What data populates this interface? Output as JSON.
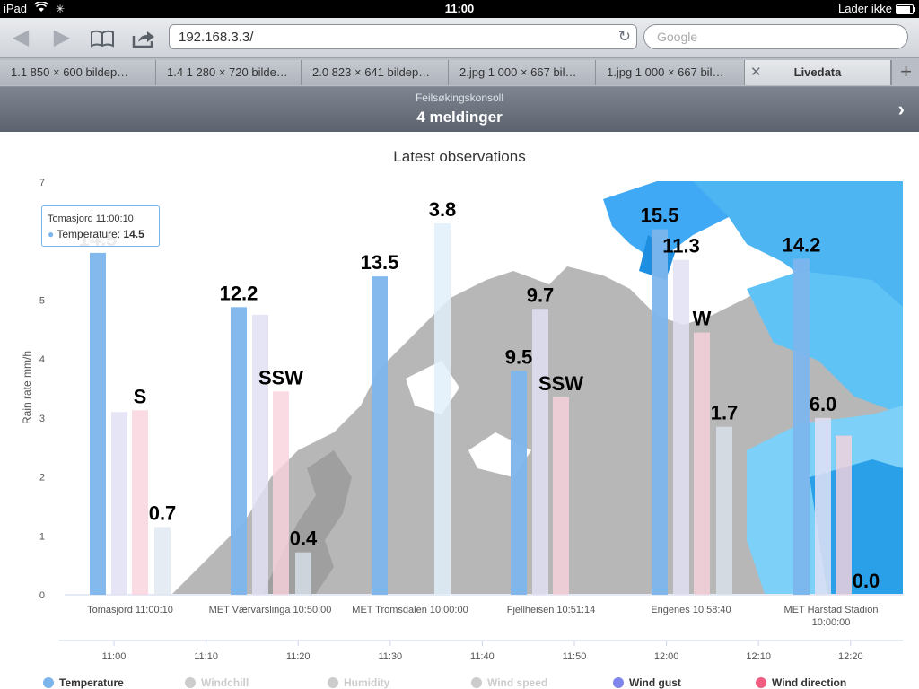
{
  "status": {
    "device": "iPad",
    "time": "11:00",
    "charging": "Lader ikke"
  },
  "browser": {
    "url": "192.168.3.3/",
    "search_placeholder": "Google",
    "tabs": [
      "1.1 850 × 600 bildep…",
      "1.4 1 280 × 720 bilde…",
      "2.0 823 × 641 bildep…",
      "2.jpg 1 000 × 667 bil…",
      "1.jpg 1 000 × 667 bil…",
      "Livedata"
    ],
    "active_tab": 5
  },
  "debug_console": {
    "title": "Feilsøkingskonsoll",
    "messages": "4 meldinger"
  },
  "tooltip": {
    "header": "Tomasjord 11:00:10",
    "series": "Temperature",
    "value": "14.5"
  },
  "colors": {
    "temperature": "#7cb5ec",
    "windchill": "#d0d0d0",
    "humidity": "#d0d0d0",
    "wind_speed": "#d0d0d0",
    "wind_gust": "#8085e9",
    "wind_direction": "#f15c80"
  },
  "chart_data": {
    "type": "bar",
    "title": "Latest observations",
    "ylabel": "Rain rate mm/h",
    "ylim": [
      0,
      7
    ],
    "yticks": [
      0,
      1,
      2,
      3,
      4,
      5,
      7
    ],
    "stations": [
      "Tomasjord 11:00:10",
      "MET Værvarslinga 10:50:00",
      "MET Tromsdalen 10:00:00",
      "Fjellheisen 10:51:14",
      "Engenes 10:58:40",
      "MET Harstad Stadion 10:00:00"
    ],
    "time_axis": [
      "11:00",
      "11:10",
      "11:20",
      "11:30",
      "11:40",
      "11:50",
      "12:00",
      "12:10",
      "12:20"
    ],
    "series": [
      {
        "name": "Temperature",
        "values": [
          5.8,
          4.88,
          5.4,
          3.8,
          6.2,
          5.7
        ],
        "labels": [
          "14.5",
          "12.2",
          "13.5",
          "9.5",
          "15.5",
          "14.2"
        ]
      },
      {
        "name": "Windchill",
        "values": [
          3.1,
          4.75,
          null,
          4.85,
          5.68,
          3.0
        ],
        "labels": [
          "",
          "",
          "",
          "9.7",
          "11.3",
          "6.0"
        ]
      },
      {
        "name": "Humidity",
        "values": [
          null,
          null,
          6.3,
          null,
          null,
          null
        ],
        "labels": [
          "",
          "",
          "3.8",
          "",
          "",
          ""
        ]
      },
      {
        "name": "Wind speed",
        "values": [
          1.15,
          0.72,
          null,
          null,
          2.85,
          0.0
        ],
        "labels": [
          "0.7",
          "0.4",
          "",
          "",
          "1.7",
          "0.0"
        ]
      },
      {
        "name": "Wind gust",
        "values": [
          null,
          null,
          null,
          null,
          null,
          null
        ],
        "labels": [
          "",
          "",
          "",
          "",
          "",
          ""
        ]
      },
      {
        "name": "Wind direction",
        "values": [
          3.13,
          3.45,
          null,
          3.35,
          4.45,
          2.7
        ],
        "labels": [
          "S",
          "SSW",
          "",
          "SSW",
          "W",
          ""
        ]
      }
    ],
    "legend": [
      "Temperature",
      "Windchill",
      "Humidity",
      "Wind speed",
      "Wind gust",
      "Wind direction"
    ]
  }
}
